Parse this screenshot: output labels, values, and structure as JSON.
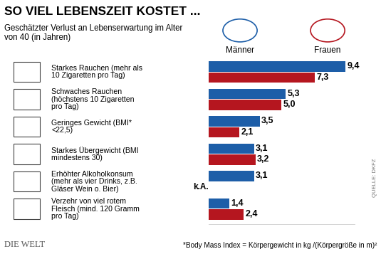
{
  "chart_data": {
    "type": "bar",
    "orientation": "horizontal",
    "title": "SO VIEL LEBENSZEIT KOSTET ...",
    "subtitle": "Geschätzter Verlust an Lebenserwartung im Alter von 40 (in Jahren)",
    "categories": [
      "Starkes Rauchen (mehr als 10 Zigaretten pro Tag)",
      "Schwaches Rauchen (höchstens 10 Zigaretten pro Tag)",
      "Geringes Gewicht (BMI* <22,5)",
      "Starkes Übergewicht (BMI mindestens 30)",
      "Erhöhter Alkoholkonsum (mehr als vier Drinks, z.B. Gläser Wein o. Bier)",
      "Verzehr von viel rotem Fleisch (mind. 120 Gramm pro Tag)"
    ],
    "series": [
      {
        "name": "Männer",
        "color": "#1d5ea8",
        "values": [
          9.4,
          5.3,
          3.5,
          3.1,
          3.1,
          1.4
        ],
        "value_labels": [
          "9,4",
          "5,3",
          "3,5",
          "3,1",
          "3,1",
          "1,4"
        ]
      },
      {
        "name": "Frauen",
        "color": "#b5161f",
        "values": [
          7.3,
          5.0,
          2.1,
          3.2,
          null,
          2.4
        ],
        "value_labels": [
          "7,3",
          "5,0",
          "2,1",
          "3,2",
          "k.A.",
          "2,4"
        ]
      }
    ],
    "xlim": [
      0,
      10
    ],
    "xticks": [],
    "data_labels": true,
    "tick_labels": false,
    "footnote": "*Body Mass Index = Körpergewicht in kg /(Körpergröße in m)²",
    "source": "QUELLE: DKFZ",
    "publisher": "DIE WELT"
  }
}
